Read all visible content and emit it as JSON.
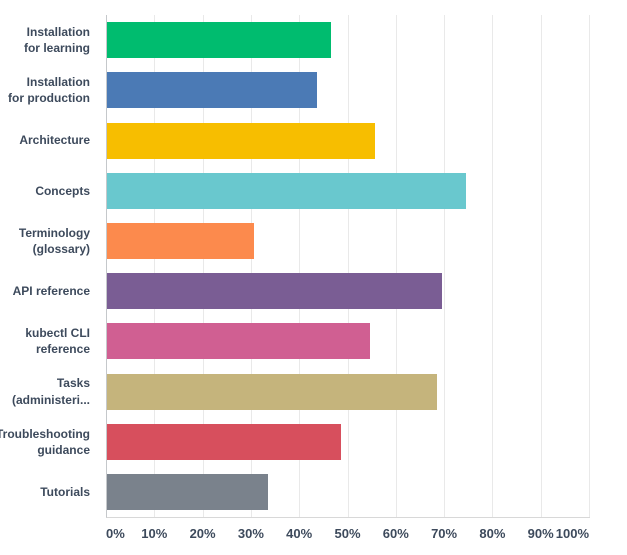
{
  "chart_data": {
    "type": "bar",
    "orientation": "horizontal",
    "title": "",
    "xlabel": "",
    "ylabel": "",
    "categories": [
      "Installation\nfor learning",
      "Installation\nfor production",
      "Architecture",
      "Concepts",
      "Terminology\n(glossary)",
      "API reference",
      "kubectl CLI\nreference",
      "Tasks\n(administeri...",
      "Troubleshooting\nguidance",
      "Tutorials"
    ],
    "values": [
      46.4,
      43.5,
      55.5,
      74.3,
      30.4,
      69.4,
      54.4,
      68.3,
      48.4,
      33.3
    ],
    "bar_colors": [
      "#00BC6F",
      "#4B7AB5",
      "#F7BE00",
      "#69C8CE",
      "#FC8A4D",
      "#7A5D94",
      "#D05F92",
      "#C5B47C",
      "#D74F5D",
      "#7A828C"
    ],
    "x_ticks": [
      "0%",
      "10%",
      "20%",
      "30%",
      "40%",
      "50%",
      "60%",
      "70%",
      "80%",
      "90%",
      "100%"
    ],
    "xlim": [
      0,
      100
    ],
    "grid": true,
    "legend": false
  },
  "colors": {
    "background": "#ffffff",
    "axis_line": "#c5c8cb",
    "baseline": "#d8d8d8",
    "gridline": "#e9e9e9",
    "label_text": "#3d4a5c"
  }
}
